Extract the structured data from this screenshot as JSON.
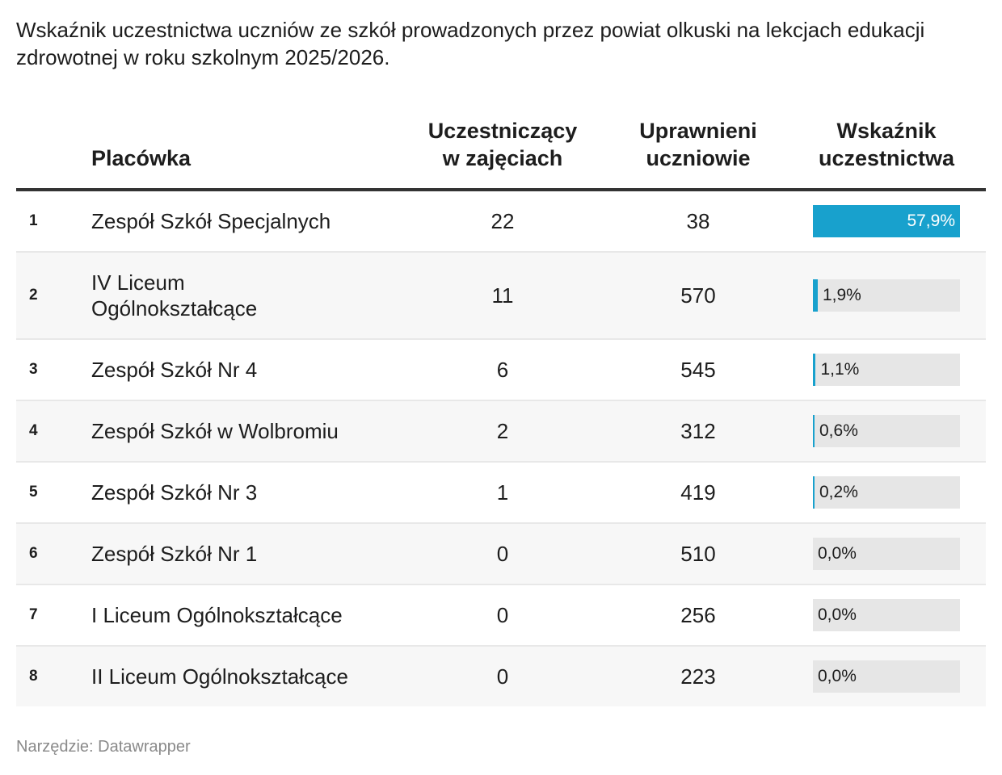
{
  "title": "Wskaźnik uczestnictwa uczniów ze szkół prowadzonych przez powiat olkuski na lekcjach edukacji zdrowotnej w roku szkolnym 2025/2026.",
  "colors": {
    "bar": "#18a1cd",
    "track": "#e6e6e6"
  },
  "chart_data": {
    "type": "table",
    "columns": [
      "Placówka",
      "Uczestniczący w zajęciach",
      "Uprawnieni uczniowie",
      "Wskaźnik uczestnictwa"
    ],
    "rows": [
      {
        "rank": "1",
        "name": "Zespół Szkół Specjalnych",
        "participants": "22",
        "eligible": "38",
        "rate": 57.9,
        "rate_label": "57,9%"
      },
      {
        "rank": "2",
        "name": "IV Liceum Ogólnokształcące",
        "participants": "11",
        "eligible": "570",
        "rate": 1.9,
        "rate_label": "1,9%"
      },
      {
        "rank": "3",
        "name": "Zespół Szkół Nr 4",
        "participants": "6",
        "eligible": "545",
        "rate": 1.1,
        "rate_label": "1,1%"
      },
      {
        "rank": "4",
        "name": "Zespół Szkół w Wolbromiu",
        "participants": "2",
        "eligible": "312",
        "rate": 0.6,
        "rate_label": "0,6%"
      },
      {
        "rank": "5",
        "name": "Zespół Szkół Nr 3",
        "participants": "1",
        "eligible": "419",
        "rate": 0.2,
        "rate_label": "0,2%"
      },
      {
        "rank": "6",
        "name": "Zespół Szkół Nr 1",
        "participants": "0",
        "eligible": "510",
        "rate": 0.0,
        "rate_label": "0,0%"
      },
      {
        "rank": "7",
        "name": "I Liceum Ogólnokształcące",
        "participants": "0",
        "eligible": "256",
        "rate": 0.0,
        "rate_label": "0,0%"
      },
      {
        "rank": "8",
        "name": "II Liceum Ogólnokształcące",
        "participants": "0",
        "eligible": "223",
        "rate": 0.0,
        "rate_label": "0,0%"
      }
    ],
    "bar_max": 57.9
  },
  "header": {
    "name": "Placówka",
    "c1_l1": "Uczestniczący",
    "c1_l2": "w zajęciach",
    "c2_l1": "Uprawnieni",
    "c2_l2": "uczniowie",
    "c3_l1": "Wskaźnik",
    "c3_l2": "uczestnictwa"
  },
  "footer": "Narzędzie: Datawrapper"
}
